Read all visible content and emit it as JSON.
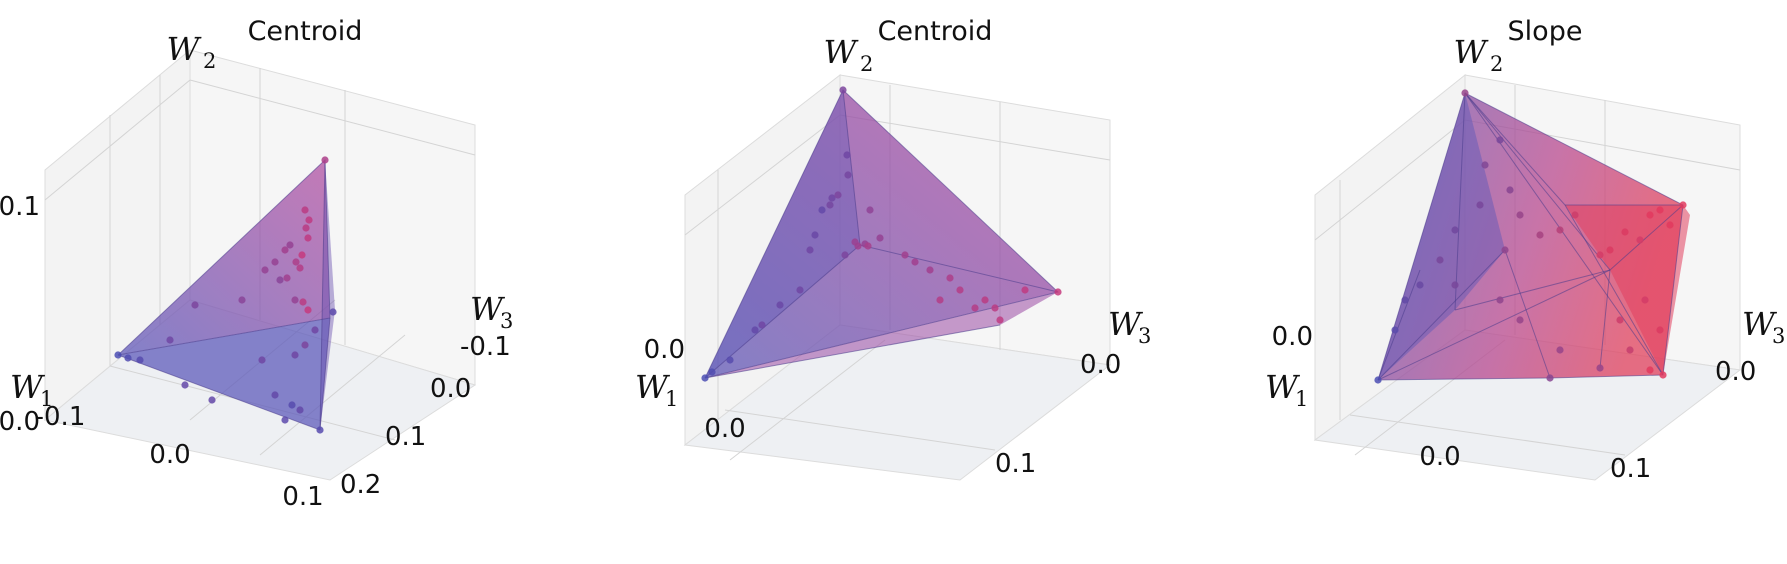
{
  "chart_data": [
    {
      "type": "scatter3d",
      "title": "Centroid",
      "axis_labels": {
        "x": "W",
        "x_sub": "1",
        "y": "W",
        "y_sub": "2",
        "z": "W",
        "z_sub": "3"
      },
      "ticks": {
        "w1": [
          "-0.1",
          "0.0",
          "0.1"
        ],
        "w2": [
          "0.0",
          "0.1"
        ],
        "w3": [
          "-0.1",
          "0.0",
          "0.1",
          "0.2"
        ]
      },
      "color_scale": [
        "#4b4db3",
        "#c63a7e"
      ],
      "hull": true,
      "points": "approximately 50 points plotted inside a tetrahedral convex hull"
    },
    {
      "type": "scatter3d",
      "title": "Centroid",
      "axis_labels": {
        "x": "W",
        "x_sub": "1",
        "y": "W",
        "y_sub": "2",
        "z": "W",
        "z_sub": "3"
      },
      "ticks": {
        "w1": [
          "0.0"
        ],
        "w2": [
          "0.0"
        ],
        "w3": [
          "0.0",
          "0.1"
        ]
      },
      "color_scale": [
        "#4b4db3",
        "#c63a7e"
      ],
      "hull": true
    },
    {
      "type": "scatter3d",
      "title": "Slope",
      "axis_labels": {
        "x": "W",
        "x_sub": "1",
        "y": "W",
        "y_sub": "2",
        "z": "W",
        "z_sub": "3"
      },
      "ticks": {
        "w1": [
          "0.0"
        ],
        "w2": [
          "0.0"
        ],
        "w3": [
          "0.0",
          "0.1"
        ]
      },
      "color_scale": [
        "#4b4db3",
        "#e23a5e"
      ],
      "hull": true
    }
  ]
}
